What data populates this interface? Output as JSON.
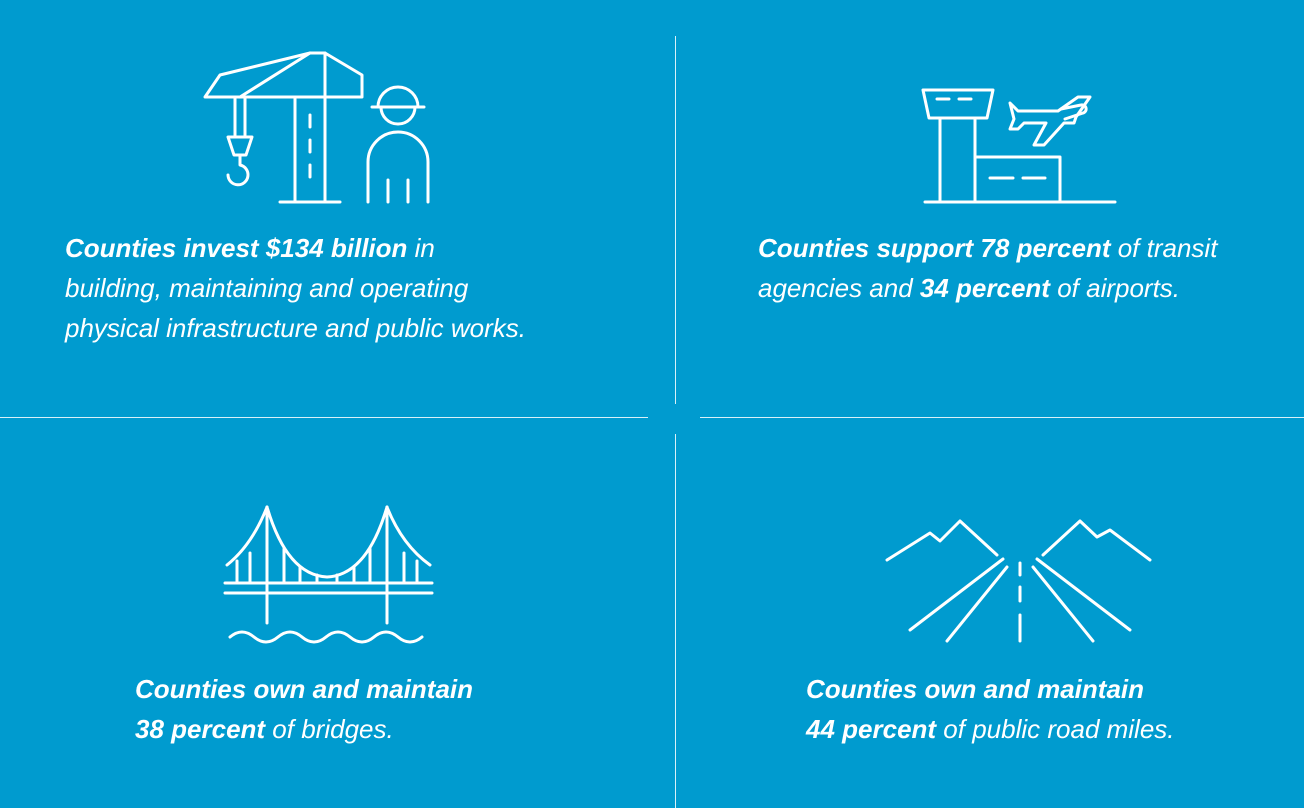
{
  "panels": [
    {
      "icon": "crane-and-worker-icon",
      "lines": [
        {
          "bold": "Counties invest $134 billion",
          "rest": " in"
        },
        {
          "bold": "",
          "rest": "building, maintaining and operating"
        },
        {
          "bold": "",
          "rest": "physical infrastructure and public works."
        }
      ]
    },
    {
      "icon": "airport-tower-and-plane-icon",
      "lines": [
        {
          "bold": "Counties support 78 percent",
          "rest": " of transit"
        },
        {
          "pre": "agencies and ",
          "bold": "34 percent",
          "rest": " of airports."
        }
      ]
    },
    {
      "icon": "suspension-bridge-icon",
      "lines": [
        {
          "bold": "Counties own and maintain",
          "rest": ""
        },
        {
          "bold": "38 percent",
          "rest": " of bridges."
        }
      ]
    },
    {
      "icon": "road-and-mountains-icon",
      "lines": [
        {
          "bold": "Counties own and maintain",
          "rest": ""
        },
        {
          "bold": "44 percent",
          "rest": " of public road miles."
        }
      ]
    }
  ]
}
